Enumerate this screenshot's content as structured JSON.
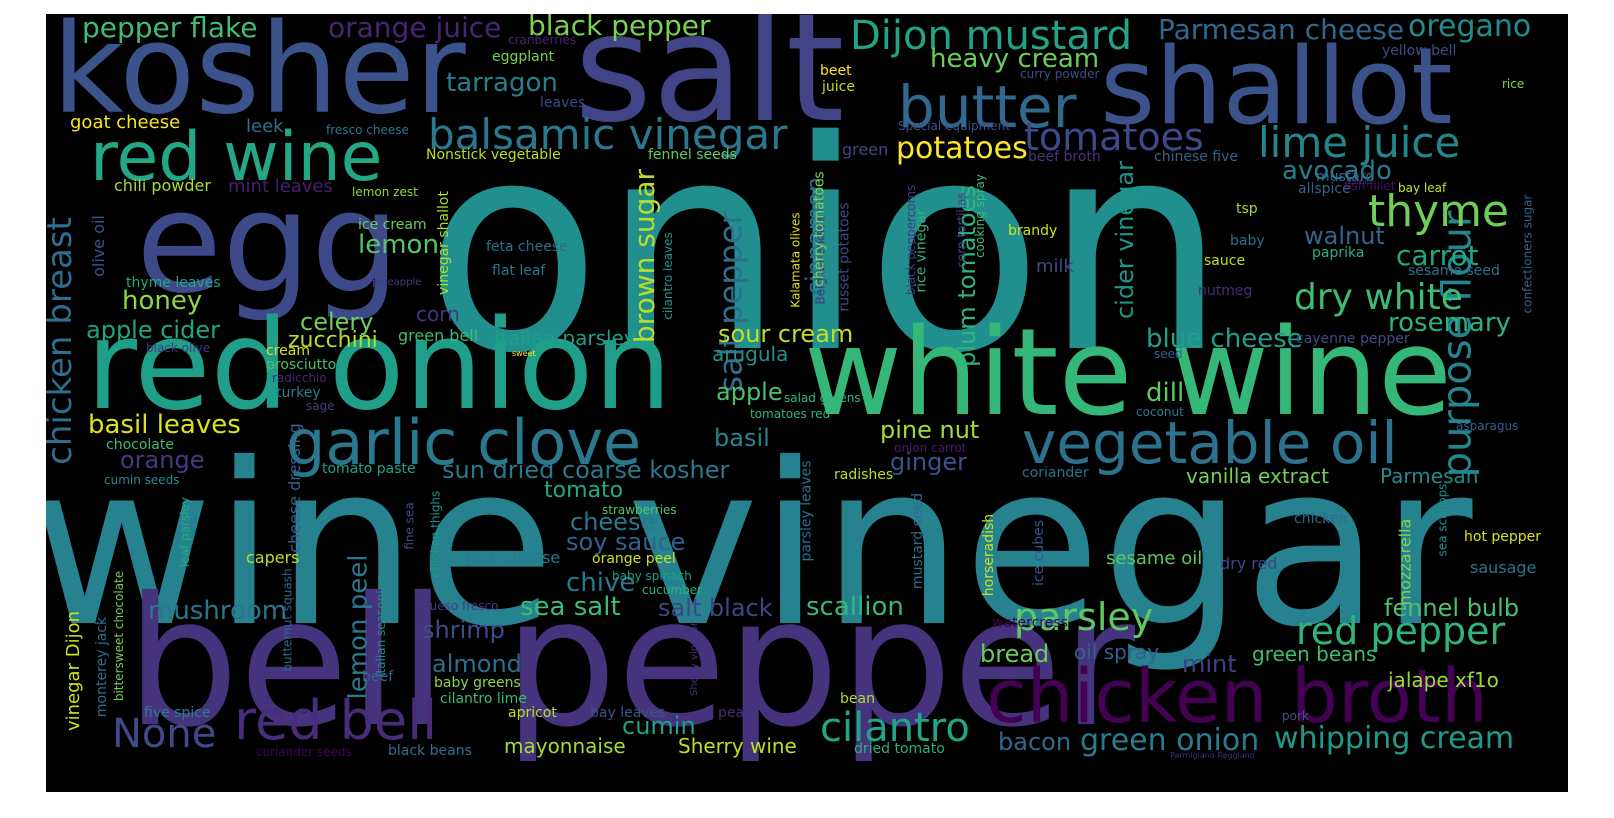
{
  "words": [
    {
      "text": "onion",
      "color": "#218f8d"
    },
    {
      "text": "wine vinegar",
      "color": "#26828e"
    },
    {
      "text": "bell pepper",
      "color": "#46337e"
    },
    {
      "text": "salt",
      "color": "#414487"
    },
    {
      "text": "kosher",
      "color": "#3b528b"
    },
    {
      "text": "egg",
      "color": "#3e4989"
    },
    {
      "text": "shallot",
      "color": "#3b528b"
    },
    {
      "text": "red onion",
      "color": "#1f9e89"
    },
    {
      "text": "white wine",
      "color": "#35b779"
    },
    {
      "text": "red wine",
      "color": "#22a884"
    },
    {
      "text": "chicken broth",
      "color": "#440154"
    },
    {
      "text": "garlic clove",
      "color": "#2a788e"
    },
    {
      "text": "vegetable oil",
      "color": "#2c728e"
    },
    {
      "text": "butter",
      "color": "#31688e"
    },
    {
      "text": "balsamic vinegar",
      "color": "#2a788e"
    },
    {
      "text": "Dijon mustard",
      "color": "#20a386"
    },
    {
      "text": "red bell",
      "color": "#472d7b"
    },
    {
      "text": "None",
      "color": "#3e4a89"
    },
    {
      "text": "lime juice",
      "color": "#25858e"
    },
    {
      "text": "tomatoes",
      "color": "#3e4989"
    },
    {
      "text": "purpose flour",
      "color": "#25848e"
    },
    {
      "text": "chicken breast",
      "color": "#2e6e8e"
    },
    {
      "text": "thyme",
      "color": "#6ece58"
    },
    {
      "text": "dry white",
      "color": "#3dbc74"
    },
    {
      "text": "cilantro",
      "color": "#21a685"
    },
    {
      "text": "red pepper",
      "color": "#2fb47c"
    },
    {
      "text": "whipping cream",
      "color": "#1f9a8a"
    },
    {
      "text": "green onion",
      "color": "#287c8e"
    },
    {
      "text": "parsley",
      "color": "#5ec962"
    },
    {
      "text": "Parmesan cheese",
      "color": "#31678e"
    },
    {
      "text": "oregano",
      "color": "#228c8d"
    },
    {
      "text": "heavy cream",
      "color": "#6ccd5a"
    },
    {
      "text": "black pepper",
      "color": "#7ad151"
    },
    {
      "text": "pepper flake",
      "color": "#40bd72"
    },
    {
      "text": "orange juice",
      "color": "#482475"
    },
    {
      "text": "tarragon",
      "color": "#277f8e"
    },
    {
      "text": "potatoes",
      "color": "#fde725"
    },
    {
      "text": "salt pepper",
      "color": "#2e6f8e"
    },
    {
      "text": "brown sugar",
      "color": "#b8de29"
    },
    {
      "text": "cinnamon",
      "color": "#2f6b8e"
    },
    {
      "text": "avocado",
      "color": "#287d8e"
    },
    {
      "text": "carrot",
      "color": "#22a785"
    },
    {
      "text": "walnut",
      "color": "#32658e"
    },
    {
      "text": "rosemary",
      "color": "#2db27d"
    },
    {
      "text": "blue cheese",
      "color": "#1fa088"
    },
    {
      "text": "cider vinegar",
      "color": "#1f968b"
    },
    {
      "text": "plum tomatoes",
      "color": "#2fb47c"
    },
    {
      "text": "lemon",
      "color": "#54c568"
    },
    {
      "text": "honey",
      "color": "#8fd744"
    },
    {
      "text": "apple cider",
      "color": "#20a386"
    },
    {
      "text": "celery",
      "color": "#6ece58"
    },
    {
      "text": "zucchini",
      "color": "#b5de2b"
    },
    {
      "text": "Italian parsley",
      "color": "#1f9e89"
    },
    {
      "text": "sour cream",
      "color": "#c2df23"
    },
    {
      "text": "arugula",
      "color": "#21918c"
    },
    {
      "text": "apple",
      "color": "#4ac16d"
    },
    {
      "text": "basil leaves",
      "color": "#dde318"
    },
    {
      "text": "basil",
      "color": "#25848e"
    },
    {
      "text": "pine nut",
      "color": "#a2da37"
    },
    {
      "text": "ginger",
      "color": "#3b528b"
    },
    {
      "text": "dill",
      "color": "#5ec962"
    },
    {
      "text": "orange",
      "color": "#443a83"
    },
    {
      "text": "sun dried coarse kosher",
      "color": "#2a788e"
    },
    {
      "text": "tomato",
      "color": "#22a884"
    },
    {
      "text": "cheese",
      "color": "#2a788e"
    },
    {
      "text": "soy sauce",
      "color": "#34618d"
    },
    {
      "text": "chive",
      "color": "#2b758e"
    },
    {
      "text": "sea salt",
      "color": "#3dbc74"
    },
    {
      "text": "salt black",
      "color": "#3f4788"
    },
    {
      "text": "scallion",
      "color": "#35b779"
    },
    {
      "text": "mushroom",
      "color": "#2b748e"
    },
    {
      "text": "shrimp",
      "color": "#3e4c8a"
    },
    {
      "text": "lemon peel",
      "color": "#2a788e"
    },
    {
      "text": "almond",
      "color": "#2e6e8e"
    },
    {
      "text": "cumin",
      "color": "#1fa287"
    },
    {
      "text": "mayonnaise",
      "color": "#a5db36"
    },
    {
      "text": "Sherry wine",
      "color": "#bddf26"
    },
    {
      "text": "bread",
      "color": "#6ccd5a"
    },
    {
      "text": "oil spray",
      "color": "#34608d"
    },
    {
      "text": "mint",
      "color": "#424086"
    },
    {
      "text": "bacon",
      "color": "#31688e"
    },
    {
      "text": "fennel bulb",
      "color": "#4ac16d"
    },
    {
      "text": "green beans",
      "color": "#3dbc74"
    },
    {
      "text": "jalape xf1o",
      "color": "#9bd93c"
    },
    {
      "text": "vanilla extract",
      "color": "#73d056"
    },
    {
      "text": "Parmesan",
      "color": "#238a8d"
    },
    {
      "text": "sesame oil",
      "color": "#5cc863"
    },
    {
      "text": "dry red",
      "color": "#414487"
    },
    {
      "text": "mozzarella",
      "color": "#84d44b"
    },
    {
      "text": "hot pepper",
      "color": "#dae319"
    },
    {
      "text": "sausage",
      "color": "#2d708e"
    },
    {
      "text": "goat cheese",
      "color": "#f6e620"
    },
    {
      "text": "leek",
      "color": "#2c718e"
    },
    {
      "text": "fresco cheese",
      "color": "#2b758e"
    },
    {
      "text": "Nonstick vegetable",
      "color": "#bddf26"
    },
    {
      "text": "fennel seeds",
      "color": "#63cb5f"
    },
    {
      "text": "chili powder",
      "color": "#a8db34"
    },
    {
      "text": "mint leaves",
      "color": "#481f70"
    },
    {
      "text": "lemon zest",
      "color": "#93d741"
    },
    {
      "text": "olive oil",
      "color": "#3b528b"
    },
    {
      "text": "vinegar shallot",
      "color": "#b0dd2f"
    },
    {
      "text": "ice cream",
      "color": "#6ccd5a"
    },
    {
      "text": "feta cheese",
      "color": "#2d708e"
    },
    {
      "text": "flat leaf",
      "color": "#2d708e"
    },
    {
      "text": "thyme leaves",
      "color": "#22a785"
    },
    {
      "text": "pineapple",
      "color": "#443983"
    },
    {
      "text": "corn",
      "color": "#463480"
    },
    {
      "text": "green bell",
      "color": "#3bbb75"
    },
    {
      "text": "cream",
      "color": "#d8e219"
    },
    {
      "text": "prosciutto",
      "color": "#48c16e"
    },
    {
      "text": "black olive",
      "color": "#453781"
    },
    {
      "text": "radicchio",
      "color": "#482677"
    },
    {
      "text": "turkey",
      "color": "#277f8e"
    },
    {
      "text": "sage",
      "color": "#424186"
    },
    {
      "text": "chocolate",
      "color": "#3bbb75"
    },
    {
      "text": "cumin seeds",
      "color": "#228c8d"
    },
    {
      "text": "cheese dressing",
      "color": "#33638d"
    },
    {
      "text": "tomato paste",
      "color": "#1fa188"
    },
    {
      "text": "capers",
      "color": "#bddf26"
    },
    {
      "text": "vinegar Dijon",
      "color": "#d0e11c"
    },
    {
      "text": "leaf parsley",
      "color": "#25ab82"
    },
    {
      "text": "bittersweet chocolate",
      "color": "#70cf57"
    },
    {
      "text": "monterey jack",
      "color": "#2e6f8e"
    },
    {
      "text": "five spice",
      "color": "#287d8e"
    },
    {
      "text": "coriander seeds",
      "color": "#440154"
    },
    {
      "text": "beef",
      "color": "#32648e"
    },
    {
      "text": "italian seasoning",
      "color": "#238a8d"
    },
    {
      "text": "butternut squash",
      "color": "#32658e"
    },
    {
      "text": "baby greens",
      "color": "#8bd646"
    },
    {
      "text": "cilantro lime",
      "color": "#3bbb75"
    },
    {
      "text": "black beans",
      "color": "#2c718e"
    },
    {
      "text": "jack cheese",
      "color": "#29798e"
    },
    {
      "text": "queso fresco",
      "color": "#443a83"
    },
    {
      "text": "orange peel",
      "color": "#cae11f"
    },
    {
      "text": "baby spinach",
      "color": "#1fa088"
    },
    {
      "text": "cucumber",
      "color": "#2db27d"
    },
    {
      "text": "apricot",
      "color": "#b8de29"
    },
    {
      "text": "bay leaves",
      "color": "#3a548c"
    },
    {
      "text": "pea",
      "color": "#472c7a"
    },
    {
      "text": "strawberries",
      "color": "#54c568"
    },
    {
      "text": "fine sea",
      "color": "#3e4a89"
    },
    {
      "text": "chicken thighs",
      "color": "#1f968b"
    },
    {
      "text": "parsley leaves",
      "color": "#2c728e"
    },
    {
      "text": "mustard seed",
      "color": "#306a8e"
    },
    {
      "text": "horseradish",
      "color": "#c8e020"
    },
    {
      "text": "ice cubes",
      "color": "#3b518b"
    },
    {
      "text": "watercress",
      "color": "#440154"
    },
    {
      "text": "Sherry vinegar",
      "color": "#46307e"
    },
    {
      "text": "bean",
      "color": "#b0dd2f"
    },
    {
      "text": "dried tomato",
      "color": "#29af7f"
    },
    {
      "text": "radishes",
      "color": "#b5de2b"
    },
    {
      "text": "coriander",
      "color": "#2d708e"
    },
    {
      "text": "tomatoes red",
      "color": "#2fb47c"
    },
    {
      "text": "salad greens",
      "color": "#32b67a"
    },
    {
      "text": "onion carrot",
      "color": "#481a6c"
    },
    {
      "text": "coconut",
      "color": "#2a788e"
    },
    {
      "text": "seed",
      "color": "#31688e"
    },
    {
      "text": "sea scallops",
      "color": "#21918c"
    },
    {
      "text": "asparagus",
      "color": "#34618d"
    },
    {
      "text": "cayenne pepper",
      "color": "#3e4c8a"
    },
    {
      "text": "sesame seed",
      "color": "#2c728e"
    },
    {
      "text": "confectioners sugar",
      "color": "#31668e"
    },
    {
      "text": "paprika",
      "color": "#2ab07f"
    },
    {
      "text": "bay leaf",
      "color": "#c8e020"
    },
    {
      "text": "fish fillet",
      "color": "#471063"
    },
    {
      "text": "allspice",
      "color": "#34618d"
    },
    {
      "text": "nutmeg",
      "color": "#482979"
    },
    {
      "text": "turnip",
      "color": "#472e7c"
    },
    {
      "text": "mustard",
      "color": "#31688e"
    },
    {
      "text": "chinese five",
      "color": "#33628d"
    },
    {
      "text": "yellow bell",
      "color": "#3e4c8a"
    },
    {
      "text": "rice",
      "color": "#84d44b"
    },
    {
      "text": "curry powder",
      "color": "#3e4c8a"
    },
    {
      "text": "Special equipment",
      "color": "#3b528b"
    },
    {
      "text": "green",
      "color": "#3f4788"
    },
    {
      "text": "beef broth",
      "color": "#46327e"
    },
    {
      "text": "cranberries",
      "color": "#482475"
    },
    {
      "text": "eggplant",
      "color": "#7ad151"
    },
    {
      "text": "beet",
      "color": "#fde725"
    },
    {
      "text": "juice",
      "color": "#bddf26"
    },
    {
      "text": "leaves",
      "color": "#3e4c8a"
    },
    {
      "text": "tsp",
      "color": "#a2da37"
    },
    {
      "text": "brandy",
      "color": "#d2e21b"
    },
    {
      "text": "baby",
      "color": "#2e6e8e"
    },
    {
      "text": "sauce",
      "color": "#c2df23"
    },
    {
      "text": "milk",
      "color": "#3e4a89"
    },
    {
      "text": "black peppercorns",
      "color": "#443a83"
    },
    {
      "text": "rice vinegar",
      "color": "#2eb37c"
    },
    {
      "text": "corn tortillas",
      "color": "#414487"
    },
    {
      "text": "cooking spray",
      "color": "#3dbc74"
    },
    {
      "text": "Kalamata olives",
      "color": "#d8e219"
    },
    {
      "text": "Belgian endive",
      "color": "#453882"
    },
    {
      "text": "russet potatoes",
      "color": "#3e4989"
    },
    {
      "text": "cherry tomatoes",
      "color": "#7fd34e"
    },
    {
      "text": "cilantro leaves",
      "color": "#1f968b"
    },
    {
      "text": "sweet",
      "color": "#fde725"
    },
    {
      "text": "pork",
      "color": "#3a548c"
    },
    {
      "text": "chicken",
      "color": "#31688e"
    },
    {
      "text": "Parmigiano Reggiano",
      "color": "#472d7b"
    }
  ]
}
